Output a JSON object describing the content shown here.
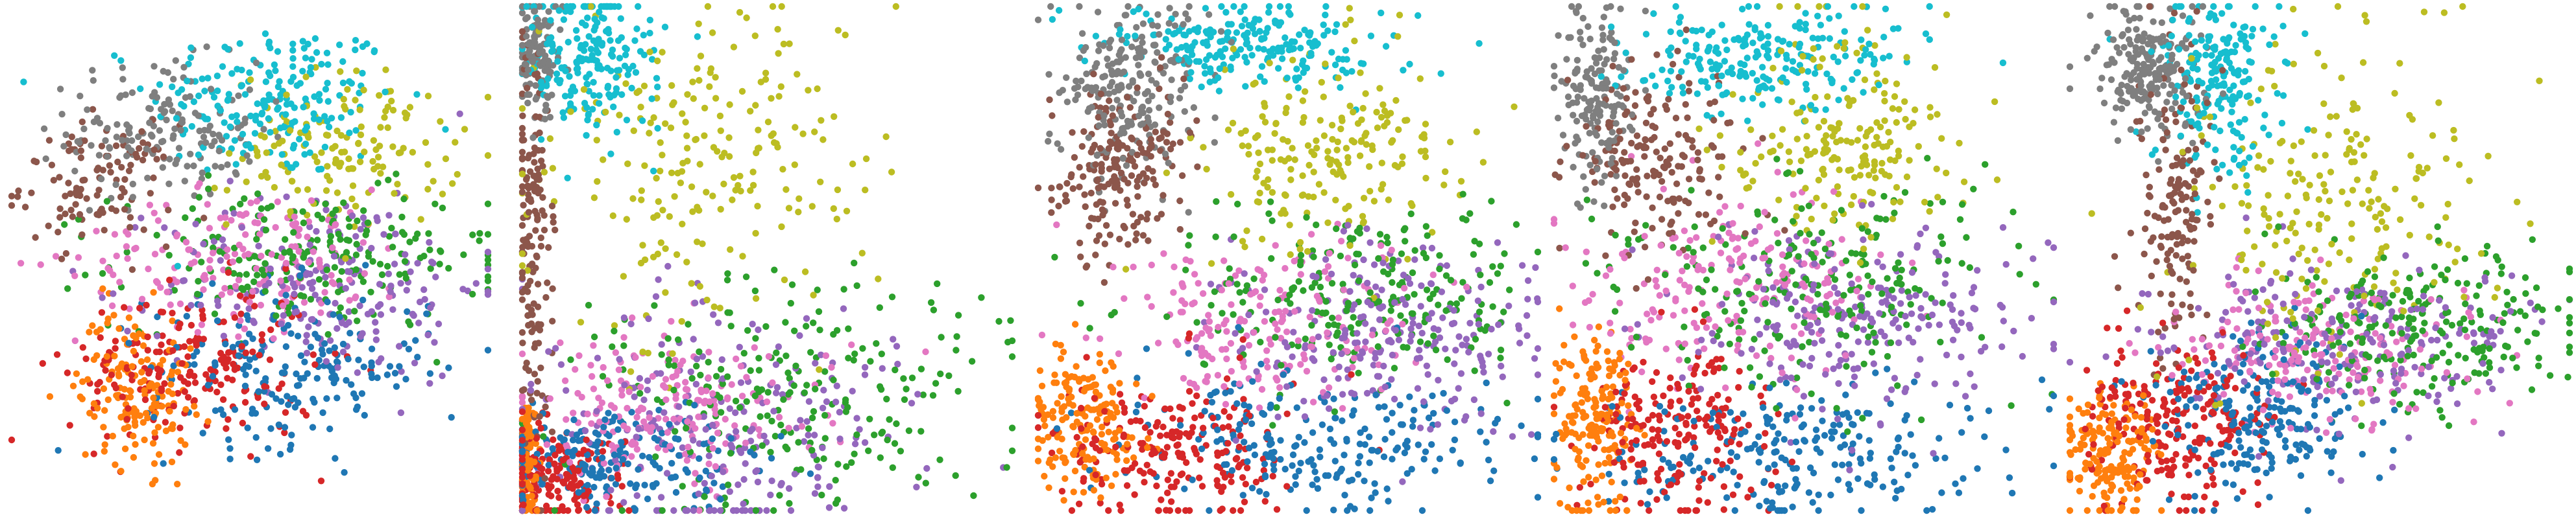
{
  "figure": {
    "panel_count": 5,
    "colors": {
      "blue": "#1f77b4",
      "orange": "#ff7f0e",
      "green": "#2ca02c",
      "red": "#d62728",
      "purple": "#9467bd",
      "brown": "#8c564b",
      "pink": "#e377c2",
      "gray": "#7f7f7f",
      "olive": "#bcbd22",
      "cyan": "#17becf"
    }
  },
  "chart_data": [
    {
      "type": "scatter",
      "axes_visible": false,
      "grid": false,
      "legend": "none",
      "xlim": [
        0,
        1
      ],
      "ylim": [
        0,
        1
      ],
      "clusters": [
        {
          "color": "cyan",
          "cx": 0.55,
          "cy": 0.82,
          "sx": 0.13,
          "sy": 0.08,
          "n": 200
        },
        {
          "color": "gray",
          "cx": 0.32,
          "cy": 0.76,
          "sx": 0.1,
          "sy": 0.07,
          "n": 160
        },
        {
          "color": "brown",
          "cx": 0.18,
          "cy": 0.65,
          "sx": 0.08,
          "sy": 0.06,
          "n": 110
        },
        {
          "color": "olive",
          "cx": 0.7,
          "cy": 0.72,
          "sx": 0.12,
          "sy": 0.08,
          "n": 150
        },
        {
          "color": "green",
          "cx": 0.62,
          "cy": 0.5,
          "sx": 0.2,
          "sy": 0.07,
          "n": 220
        },
        {
          "color": "purple",
          "cx": 0.66,
          "cy": 0.45,
          "sx": 0.17,
          "sy": 0.1,
          "n": 200
        },
        {
          "color": "pink",
          "cx": 0.5,
          "cy": 0.5,
          "sx": 0.18,
          "sy": 0.07,
          "n": 180
        },
        {
          "color": "blue",
          "cx": 0.58,
          "cy": 0.28,
          "sx": 0.15,
          "sy": 0.08,
          "n": 200
        },
        {
          "color": "red",
          "cx": 0.38,
          "cy": 0.28,
          "sx": 0.13,
          "sy": 0.08,
          "n": 200
        },
        {
          "color": "orange",
          "cx": 0.26,
          "cy": 0.24,
          "sx": 0.06,
          "sy": 0.08,
          "n": 160
        }
      ]
    },
    {
      "type": "scatter",
      "axes_visible": false,
      "grid": false,
      "legend": "none",
      "xlim": [
        0,
        1
      ],
      "ylim": [
        0,
        1
      ],
      "clusters": [
        {
          "color": "cyan",
          "cx": 0.13,
          "cy": 0.9,
          "sx": 0.07,
          "sy": 0.08,
          "n": 200
        },
        {
          "color": "gray",
          "cx": 0.03,
          "cy": 0.9,
          "sx": 0.02,
          "sy": 0.07,
          "n": 120
        },
        {
          "color": "brown",
          "cx": 0.02,
          "cy": 0.55,
          "sx": 0.02,
          "sy": 0.2,
          "n": 160
        },
        {
          "color": "olive",
          "cx": 0.38,
          "cy": 0.68,
          "sx": 0.16,
          "sy": 0.17,
          "n": 220
        },
        {
          "color": "green",
          "cx": 0.55,
          "cy": 0.22,
          "sx": 0.22,
          "sy": 0.12,
          "n": 230
        },
        {
          "color": "purple",
          "cx": 0.4,
          "cy": 0.18,
          "sx": 0.2,
          "sy": 0.12,
          "n": 230
        },
        {
          "color": "pink",
          "cx": 0.28,
          "cy": 0.2,
          "sx": 0.16,
          "sy": 0.08,
          "n": 200
        },
        {
          "color": "blue",
          "cx": 0.18,
          "cy": 0.1,
          "sx": 0.14,
          "sy": 0.05,
          "n": 200
        },
        {
          "color": "red",
          "cx": 0.06,
          "cy": 0.07,
          "sx": 0.06,
          "sy": 0.05,
          "n": 180
        },
        {
          "color": "orange",
          "cx": 0.01,
          "cy": 0.1,
          "sx": 0.01,
          "sy": 0.06,
          "n": 100
        }
      ]
    },
    {
      "type": "scatter",
      "axes_visible": false,
      "grid": false,
      "legend": "none",
      "xlim": [
        0,
        1
      ],
      "ylim": [
        0,
        1
      ],
      "clusters": [
        {
          "color": "cyan",
          "cx": 0.42,
          "cy": 0.92,
          "sx": 0.14,
          "sy": 0.04,
          "n": 220
        },
        {
          "color": "gray",
          "cx": 0.18,
          "cy": 0.85,
          "sx": 0.08,
          "sy": 0.08,
          "n": 220
        },
        {
          "color": "brown",
          "cx": 0.16,
          "cy": 0.68,
          "sx": 0.07,
          "sy": 0.08,
          "n": 200
        },
        {
          "color": "olive",
          "cx": 0.6,
          "cy": 0.7,
          "sx": 0.12,
          "sy": 0.1,
          "n": 200
        },
        {
          "color": "green",
          "cx": 0.65,
          "cy": 0.42,
          "sx": 0.18,
          "sy": 0.09,
          "n": 230
        },
        {
          "color": "purple",
          "cx": 0.7,
          "cy": 0.35,
          "sx": 0.16,
          "sy": 0.1,
          "n": 230
        },
        {
          "color": "pink",
          "cx": 0.45,
          "cy": 0.38,
          "sx": 0.16,
          "sy": 0.08,
          "n": 200
        },
        {
          "color": "blue",
          "cx": 0.55,
          "cy": 0.14,
          "sx": 0.2,
          "sy": 0.07,
          "n": 230
        },
        {
          "color": "red",
          "cx": 0.28,
          "cy": 0.12,
          "sx": 0.12,
          "sy": 0.07,
          "n": 210
        },
        {
          "color": "orange",
          "cx": 0.08,
          "cy": 0.18,
          "sx": 0.05,
          "sy": 0.07,
          "n": 180
        }
      ]
    },
    {
      "type": "scatter",
      "axes_visible": false,
      "grid": false,
      "legend": "none",
      "xlim": [
        0,
        1
      ],
      "ylim": [
        0,
        1
      ],
      "clusters": [
        {
          "color": "cyan",
          "cx": 0.42,
          "cy": 0.9,
          "sx": 0.14,
          "sy": 0.05,
          "n": 220
        },
        {
          "color": "gray",
          "cx": 0.08,
          "cy": 0.82,
          "sx": 0.04,
          "sy": 0.1,
          "n": 160
        },
        {
          "color": "brown",
          "cx": 0.2,
          "cy": 0.7,
          "sx": 0.08,
          "sy": 0.09,
          "n": 180
        },
        {
          "color": "olive",
          "cx": 0.58,
          "cy": 0.74,
          "sx": 0.12,
          "sy": 0.1,
          "n": 200
        },
        {
          "color": "green",
          "cx": 0.52,
          "cy": 0.45,
          "sx": 0.2,
          "sy": 0.1,
          "n": 230
        },
        {
          "color": "purple",
          "cx": 0.6,
          "cy": 0.38,
          "sx": 0.18,
          "sy": 0.1,
          "n": 230
        },
        {
          "color": "pink",
          "cx": 0.35,
          "cy": 0.45,
          "sx": 0.16,
          "sy": 0.09,
          "n": 200
        },
        {
          "color": "blue",
          "cx": 0.48,
          "cy": 0.12,
          "sx": 0.2,
          "sy": 0.07,
          "n": 230
        },
        {
          "color": "red",
          "cx": 0.25,
          "cy": 0.15,
          "sx": 0.1,
          "sy": 0.09,
          "n": 200
        },
        {
          "color": "orange",
          "cx": 0.08,
          "cy": 0.18,
          "sx": 0.04,
          "sy": 0.09,
          "n": 180
        }
      ]
    },
    {
      "type": "scatter",
      "axes_visible": false,
      "grid": false,
      "legend": "none",
      "xlim": [
        0,
        1
      ],
      "ylim": [
        0,
        1
      ],
      "clusters": [
        {
          "color": "gray",
          "cx": 0.16,
          "cy": 0.88,
          "sx": 0.05,
          "sy": 0.06,
          "n": 200
        },
        {
          "color": "cyan",
          "cx": 0.3,
          "cy": 0.86,
          "sx": 0.06,
          "sy": 0.09,
          "n": 200
        },
        {
          "color": "brown",
          "cx": 0.21,
          "cy": 0.62,
          "sx": 0.04,
          "sy": 0.15,
          "n": 160
        },
        {
          "color": "olive",
          "cx": 0.52,
          "cy": 0.62,
          "sx": 0.14,
          "sy": 0.16,
          "n": 220
        },
        {
          "color": "green",
          "cx": 0.7,
          "cy": 0.36,
          "sx": 0.16,
          "sy": 0.08,
          "n": 230
        },
        {
          "color": "purple",
          "cx": 0.55,
          "cy": 0.34,
          "sx": 0.18,
          "sy": 0.08,
          "n": 220
        },
        {
          "color": "pink",
          "cx": 0.48,
          "cy": 0.32,
          "sx": 0.15,
          "sy": 0.07,
          "n": 200
        },
        {
          "color": "blue",
          "cx": 0.38,
          "cy": 0.18,
          "sx": 0.1,
          "sy": 0.08,
          "n": 220
        },
        {
          "color": "red",
          "cx": 0.22,
          "cy": 0.18,
          "sx": 0.09,
          "sy": 0.08,
          "n": 220
        },
        {
          "color": "orange",
          "cx": 0.08,
          "cy": 0.12,
          "sx": 0.05,
          "sy": 0.06,
          "n": 180
        }
      ]
    }
  ]
}
